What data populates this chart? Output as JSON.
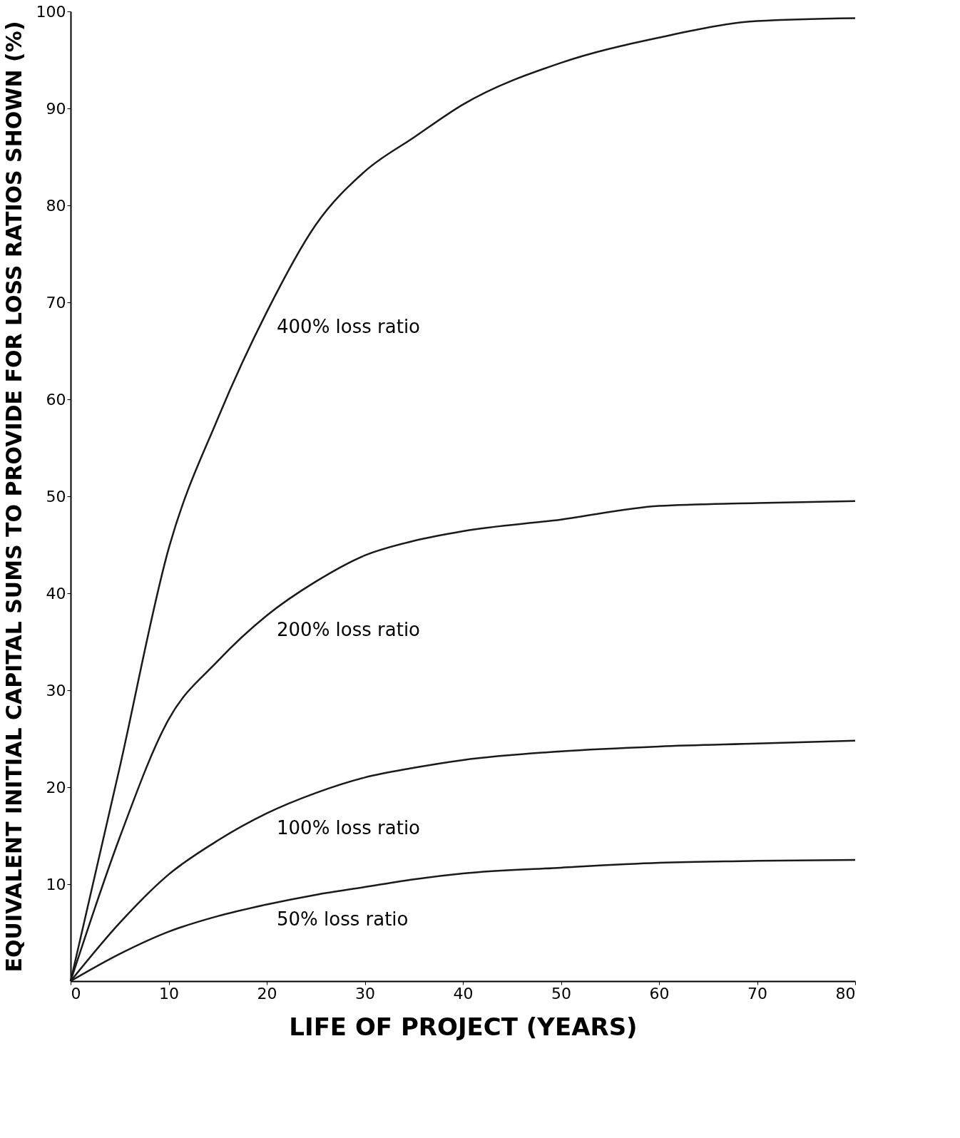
{
  "chart_data": {
    "type": "line",
    "xlabel": "LIFE OF PROJECT (YEARS)",
    "ylabel": "EQUIVALENT INITIAL CAPITAL SUMS TO PROVIDE FOR LOSS RATIOS SHOWN (%)",
    "x": [
      0,
      5,
      10,
      15,
      20,
      25,
      30,
      35,
      40,
      50,
      60,
      70,
      80
    ],
    "series": [
      {
        "name": "400% loss ratio",
        "color": "#1a1a1a",
        "values": [
          0,
          22,
          44.6,
          58,
          69,
          78,
          83.5,
          87,
          90.4,
          94.7,
          97.3,
          99,
          99.3
        ]
      },
      {
        "name": "200% loss ratio",
        "color": "#1a1a1a",
        "values": [
          0,
          14.8,
          27,
          33,
          37.7,
          41.2,
          43.9,
          45.4,
          46.4,
          47.6,
          49,
          49.3,
          49.5
        ]
      },
      {
        "name": "100% loss ratio",
        "color": "#1a1a1a",
        "values": [
          0,
          6,
          11,
          14.5,
          17.3,
          19.4,
          21,
          22,
          22.8,
          23.7,
          24.2,
          24.5,
          24.8
        ]
      },
      {
        "name": "50% loss ratio",
        "color": "#1a1a1a",
        "values": [
          0,
          2.8,
          5.1,
          6.7,
          7.9,
          8.9,
          9.7,
          10.5,
          11.1,
          11.7,
          12.2,
          12.4,
          12.5
        ]
      }
    ],
    "xlim": [
      0,
      80
    ],
    "xticks": [
      0,
      10,
      20,
      30,
      40,
      50,
      60,
      70,
      80
    ],
    "ylim": [
      0,
      100
    ],
    "yticks": [
      10,
      20,
      30,
      40,
      50,
      60,
      70,
      80,
      90,
      100
    ],
    "grid": false,
    "legend": false,
    "marker": "none",
    "line_style": "solid"
  }
}
